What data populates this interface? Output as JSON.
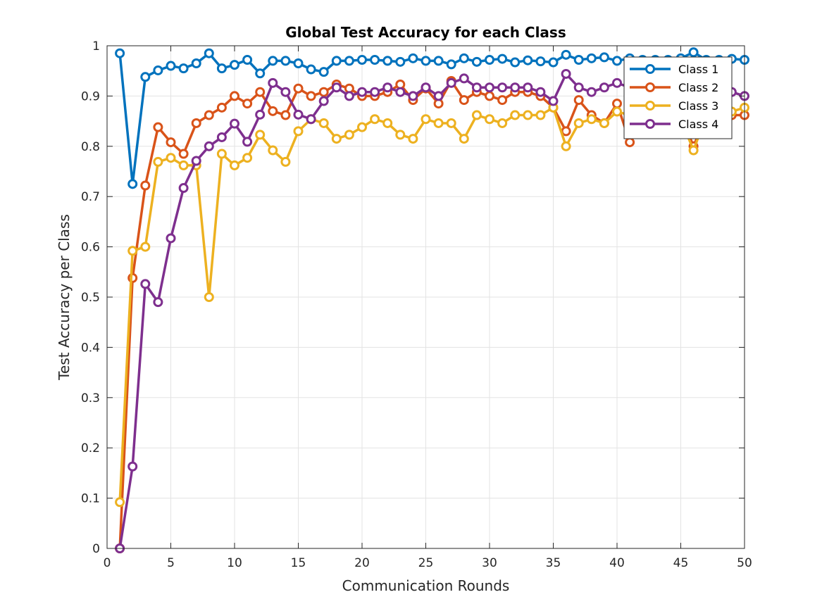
{
  "chart_data": {
    "type": "line",
    "title": "Global Test Accuracy for each Class",
    "xlabel": "Communication Rounds",
    "ylabel": "Test Accuracy per Class",
    "xlim": [
      0,
      50
    ],
    "ylim": [
      0,
      1
    ],
    "xticks": [
      0,
      5,
      10,
      15,
      20,
      25,
      30,
      35,
      40,
      45,
      50
    ],
    "yticks": [
      0,
      0.1,
      0.2,
      0.3,
      0.4,
      0.5,
      0.6,
      0.7,
      0.8,
      0.9,
      1
    ],
    "xtick_labels": [
      "0",
      "5",
      "10",
      "15",
      "20",
      "25",
      "30",
      "35",
      "40",
      "45",
      "50"
    ],
    "ytick_labels": [
      "0",
      "0.1",
      "0.2",
      "0.3",
      "0.4",
      "0.5",
      "0.6",
      "0.7",
      "0.8",
      "0.9",
      "1"
    ],
    "grid": true,
    "legend_position": "top-right",
    "marker": "circle",
    "x": [
      1,
      2,
      3,
      4,
      5,
      6,
      7,
      8,
      9,
      10,
      11,
      12,
      13,
      14,
      15,
      16,
      17,
      18,
      19,
      20,
      21,
      22,
      23,
      24,
      25,
      26,
      27,
      28,
      29,
      30,
      31,
      32,
      33,
      34,
      35,
      36,
      37,
      38,
      39,
      40,
      41,
      42,
      43,
      44,
      45,
      46,
      47,
      48,
      49,
      50
    ],
    "series": [
      {
        "name": "Class 1",
        "color": "#0072BD",
        "values": [
          0.985,
          0.725,
          0.938,
          0.951,
          0.96,
          0.955,
          0.965,
          0.985,
          0.955,
          0.962,
          0.972,
          0.945,
          0.97,
          0.97,
          0.965,
          0.953,
          0.948,
          0.97,
          0.97,
          0.972,
          0.972,
          0.97,
          0.968,
          0.975,
          0.97,
          0.97,
          0.963,
          0.975,
          0.968,
          0.972,
          0.974,
          0.967,
          0.971,
          0.969,
          0.967,
          0.982,
          0.972,
          0.975,
          0.977,
          0.97,
          0.975,
          0.972,
          0.972,
          0.972,
          0.975,
          0.987,
          0.972,
          0.972,
          0.974,
          0.972
        ]
      },
      {
        "name": "Class 2",
        "color": "#D95319",
        "values": [
          0.0,
          0.538,
          0.722,
          0.838,
          0.808,
          0.785,
          0.846,
          0.862,
          0.877,
          0.9,
          0.885,
          0.908,
          0.87,
          0.862,
          0.915,
          0.9,
          0.908,
          0.923,
          0.915,
          0.9,
          0.9,
          0.908,
          0.923,
          0.892,
          0.915,
          0.885,
          0.93,
          0.892,
          0.908,
          0.9,
          0.892,
          0.908,
          0.908,
          0.9,
          0.877,
          0.83,
          0.892,
          0.862,
          0.846,
          0.885,
          0.808,
          0.862,
          0.877,
          0.869,
          0.862,
          0.8,
          0.862,
          0.869,
          0.862,
          0.862
        ]
      },
      {
        "name": "Class 3",
        "color": "#EDB120",
        "values": [
          0.092,
          0.592,
          0.6,
          0.769,
          0.777,
          0.762,
          0.762,
          0.5,
          0.785,
          0.762,
          0.777,
          0.823,
          0.792,
          0.769,
          0.83,
          0.854,
          0.846,
          0.815,
          0.823,
          0.838,
          0.854,
          0.846,
          0.823,
          0.815,
          0.854,
          0.846,
          0.846,
          0.815,
          0.862,
          0.854,
          0.846,
          0.862,
          0.862,
          0.862,
          0.877,
          0.8,
          0.846,
          0.854,
          0.846,
          0.869,
          0.862,
          0.854,
          0.862,
          0.862,
          0.854,
          0.792,
          0.862,
          0.869,
          0.869,
          0.877
        ]
      },
      {
        "name": "Class 4",
        "color": "#7E2F8E",
        "values": [
          0.0,
          0.163,
          0.526,
          0.49,
          0.617,
          0.717,
          0.771,
          0.8,
          0.818,
          0.845,
          0.809,
          0.863,
          0.926,
          0.908,
          0.863,
          0.854,
          0.89,
          0.917,
          0.9,
          0.908,
          0.908,
          0.917,
          0.908,
          0.9,
          0.917,
          0.9,
          0.926,
          0.935,
          0.917,
          0.917,
          0.917,
          0.917,
          0.917,
          0.908,
          0.89,
          0.944,
          0.917,
          0.908,
          0.917,
          0.926,
          0.917,
          0.926,
          0.917,
          0.917,
          0.917,
          0.917,
          0.926,
          0.917,
          0.908,
          0.9
        ]
      }
    ]
  }
}
